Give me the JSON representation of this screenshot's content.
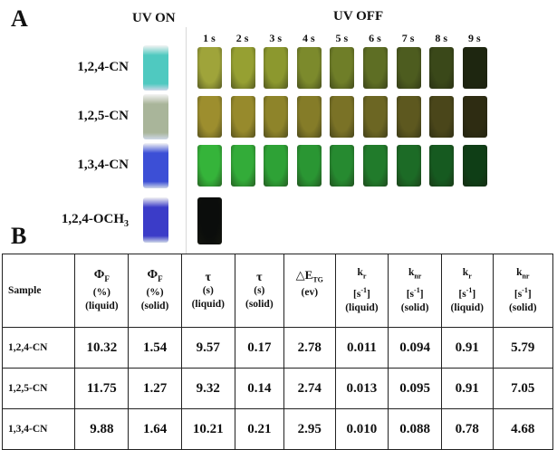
{
  "panelA": {
    "label": "A",
    "uv_on": "UV ON",
    "uv_off": "UV OFF",
    "times": [
      "1 s",
      "2 s",
      "3 s",
      "4 s",
      "5 s",
      "6 s",
      "7 s",
      "8 s",
      "9 s"
    ],
    "rows": [
      {
        "sample": "1,2,4-CN",
        "on_color": "#4fc9c0",
        "off_colors": [
          "#9fa43a",
          "#96a032",
          "#8c982e",
          "#7c8a2c",
          "#6f7e28",
          "#5e6e24",
          "#4d5c1f",
          "#3a4819",
          "#1e2610"
        ]
      },
      {
        "sample": "1,2,5-CN",
        "on_color": "#a9b59a",
        "off_colors": [
          "#9d8e2e",
          "#978a2c",
          "#8e842a",
          "#857c28",
          "#7a7226",
          "#6c6623",
          "#5d581f",
          "#4a461a",
          "#2e2c12"
        ]
      },
      {
        "sample": "1,3,4-CN",
        "on_color": "#3c4fd6",
        "off_colors": [
          "#35b43a",
          "#33ac39",
          "#2ea236",
          "#2a9633",
          "#268a30",
          "#217b2b",
          "#1c6b26",
          "#165a20",
          "#0f3e16"
        ]
      },
      {
        "sample_main": "1,2,4-OCH",
        "sample_sub": "3",
        "on_color": "#3b3cc8",
        "off_colors": [
          "#0b0d0c"
        ]
      }
    ]
  },
  "panelB": {
    "label": "B",
    "headers": [
      {
        "l1": "Sample",
        "l2": "",
        "l3": ""
      },
      {
        "l1": "ΦF",
        "l2": "(%)",
        "l3": "(liquid)"
      },
      {
        "l1": "ΦF",
        "l2": "(%)",
        "l3": "(solid)"
      },
      {
        "l1": "τ",
        "l2": "(s)",
        "l3": "(liquid)"
      },
      {
        "l1": "τ",
        "l2": "(s)",
        "l3": "(solid)"
      },
      {
        "l1": "△ETG",
        "l2": "(ev)",
        "l3": ""
      },
      {
        "l1": "kr",
        "l2": "[s-1]",
        "l3": "(liquid)"
      },
      {
        "l1": "knr",
        "l2": "[s-1]",
        "l3": "(solid)"
      },
      {
        "l1": "kr",
        "l2": "[s-1]",
        "l3": "(liquid)"
      },
      {
        "l1": "knr",
        "l2": "[s-1]",
        "l3": "(solid)"
      }
    ],
    "rows": [
      [
        "1,2,4-CN",
        "10.32",
        "1.54",
        "9.57",
        "0.17",
        "2.78",
        "0.011",
        "0.094",
        "0.91",
        "5.79"
      ],
      [
        "1,2,5-CN",
        "11.75",
        "1.27",
        "9.32",
        "0.14",
        "2.74",
        "0.013",
        "0.095",
        "0.91",
        "7.05"
      ],
      [
        "1,3,4-CN",
        "9.88",
        "1.64",
        "10.21",
        "0.21",
        "2.95",
        "0.010",
        "0.088",
        "0.78",
        "4.68"
      ]
    ]
  }
}
